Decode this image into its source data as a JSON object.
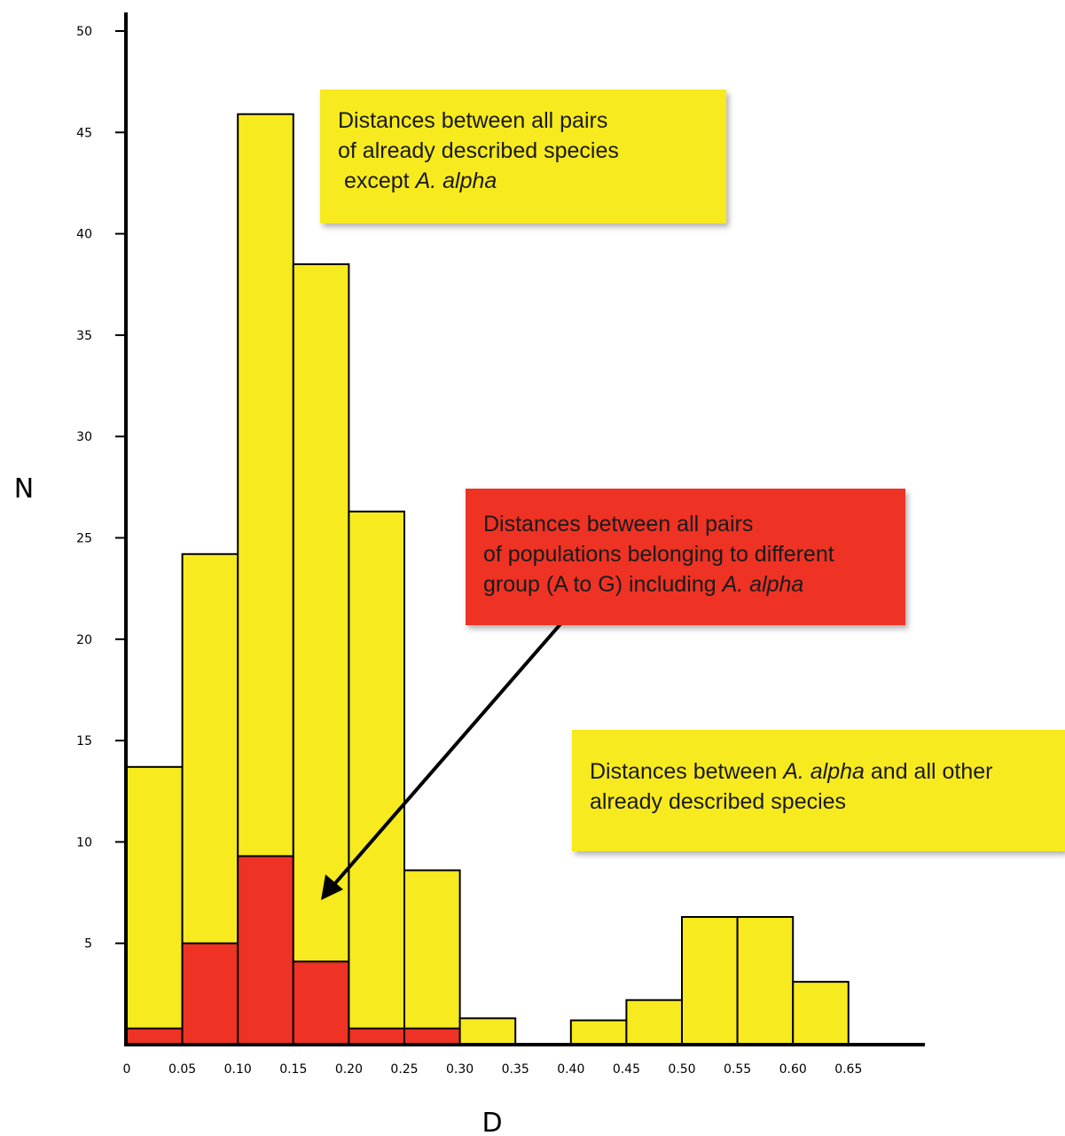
{
  "chart_data": {
    "type": "bar",
    "stacked": true,
    "xlabel": "D",
    "ylabel": "N",
    "xlim": [
      0,
      0.65
    ],
    "ylim": [
      0,
      50
    ],
    "x_ticks": [
      "0",
      "0.05",
      "0.10",
      "0.15",
      "0.20",
      "0.25",
      "0.30",
      "0.35",
      "0.40",
      "0.45",
      "0.50",
      "0.55",
      "0.60",
      "0.65"
    ],
    "y_ticks": [
      "5",
      "10",
      "15",
      "20",
      "25",
      "30",
      "35",
      "40",
      "45",
      "50"
    ],
    "bin_width": 0.05,
    "bins": [
      {
        "x0": 0.0,
        "x1": 0.05,
        "yellow_total": 13.7,
        "red": 0.8
      },
      {
        "x0": 0.05,
        "x1": 0.1,
        "yellow_total": 24.2,
        "red": 5.0
      },
      {
        "x0": 0.1,
        "x1": 0.15,
        "yellow_total": 45.9,
        "red": 9.3
      },
      {
        "x0": 0.15,
        "x1": 0.2,
        "yellow_total": 38.5,
        "red": 4.1
      },
      {
        "x0": 0.2,
        "x1": 0.25,
        "yellow_total": 26.3,
        "red": 0.8
      },
      {
        "x0": 0.25,
        "x1": 0.3,
        "yellow_total": 8.6,
        "red": 0.8
      },
      {
        "x0": 0.3,
        "x1": 0.35,
        "yellow_total": 1.3,
        "red": 0
      },
      {
        "x0": 0.4,
        "x1": 0.45,
        "yellow_total": 1.2,
        "red": 0
      },
      {
        "x0": 0.45,
        "x1": 0.5,
        "yellow_total": 2.2,
        "red": 0
      },
      {
        "x0": 0.5,
        "x1": 0.55,
        "yellow_total": 6.3,
        "red": 0
      },
      {
        "x0": 0.55,
        "x1": 0.6,
        "yellow_total": 6.3,
        "red": 0
      },
      {
        "x0": 0.6,
        "x1": 0.65,
        "yellow_total": 3.1,
        "red": 0
      }
    ],
    "colors": {
      "yellow": "#f7ea1e",
      "red": "#ee3224",
      "axis": "#000000",
      "outline": "#000000"
    },
    "annotations": {
      "species": {
        "lines": [
          [
            {
              "text": "Distances between all pairs"
            }
          ],
          [
            {
              "text": "of already described species"
            }
          ],
          [
            {
              "text": " except "
            },
            {
              "text": "A. alpha",
              "italic": true
            }
          ]
        ],
        "color": "#f7ea1e"
      },
      "populations": {
        "lines": [
          [
            {
              "text": "Distances between all pairs"
            }
          ],
          [
            {
              "text": "of populations belonging to different"
            }
          ],
          [
            {
              "text": "group (A to G) including "
            },
            {
              "text": "A. alpha",
              "italic": true
            }
          ]
        ],
        "color": "#ee3224"
      },
      "alpha": {
        "lines": [
          [
            {
              "text": "Distances between "
            },
            {
              "text": "A. alpha",
              "italic": true
            },
            {
              "text": " and all other"
            }
          ],
          [
            {
              "text": "already described species"
            }
          ]
        ],
        "color": "#f7ea1e"
      }
    }
  }
}
